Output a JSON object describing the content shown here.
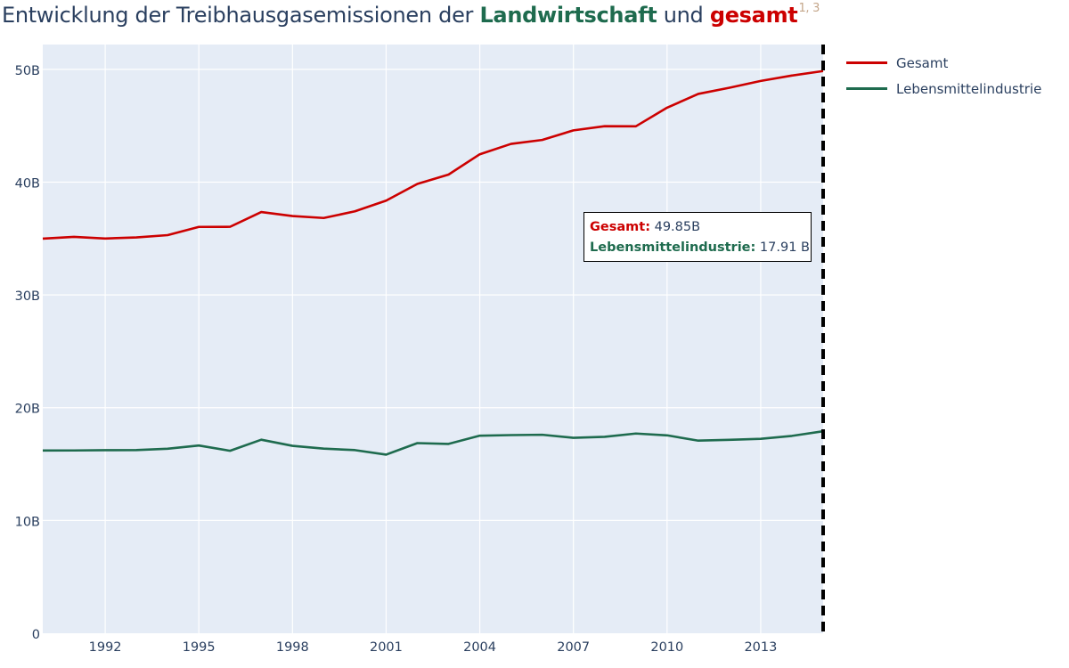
{
  "title": {
    "prefix": "Entwicklung der Treibhausgasemissionen der ",
    "highlight_green": "Landwirtschaft",
    "middle": " und ",
    "highlight_red": "gesamt",
    "footnote": "1, 3"
  },
  "legend": {
    "items": [
      {
        "label": "Gesamt",
        "color": "#cc0000"
      },
      {
        "label": "Lebensmittelindustrie",
        "color": "#1e6b4e"
      }
    ]
  },
  "tooltip": {
    "gesamt_label": "Gesamt:",
    "gesamt_value": "49.85B",
    "lebensmittel_label": "Lebensmittelindustrie:",
    "lebensmittel_value": "17.91 B"
  },
  "colors": {
    "plot_background": "#e5ecf6",
    "gridline": "#ffffff",
    "gesamt": "#cc0000",
    "lebensmittelindustrie": "#1e6b4e",
    "hover_line": "#000000"
  },
  "chart_data": {
    "type": "line",
    "x": [
      1990,
      1991,
      1992,
      1993,
      1994,
      1995,
      1996,
      1997,
      1998,
      1999,
      2000,
      2001,
      2002,
      2003,
      2004,
      2005,
      2006,
      2007,
      2008,
      2009,
      2010,
      2011,
      2012,
      2013,
      2014,
      2015
    ],
    "series": [
      {
        "name": "Gesamt",
        "color": "#cc0000",
        "values": [
          34.99,
          35.15,
          35.0,
          35.1,
          35.3,
          36.03,
          36.04,
          37.35,
          36.99,
          36.82,
          37.41,
          38.36,
          39.84,
          40.67,
          42.47,
          43.39,
          43.74,
          44.59,
          44.96,
          44.95,
          46.6,
          47.82,
          48.37,
          48.97,
          49.45,
          49.85
        ]
      },
      {
        "name": "Lebensmittelindustrie",
        "color": "#1e6b4e",
        "values": [
          16.2,
          16.21,
          16.23,
          16.24,
          16.36,
          16.65,
          16.18,
          17.16,
          16.62,
          16.37,
          16.24,
          15.84,
          16.86,
          16.79,
          17.52,
          17.57,
          17.6,
          17.33,
          17.42,
          17.71,
          17.55,
          17.08,
          17.15,
          17.24,
          17.5,
          17.91
        ]
      }
    ],
    "x_ticks": [
      1992,
      1995,
      1998,
      2001,
      2004,
      2007,
      2010,
      2013
    ],
    "x_tick_labels": [
      "1992",
      "1995",
      "1998",
      "2001",
      "2004",
      "2007",
      "2010",
      "2013"
    ],
    "y_ticks": [
      0,
      10,
      20,
      30,
      40,
      50
    ],
    "y_tick_labels": [
      "0",
      "10B",
      "20B",
      "30B",
      "40B",
      "50B"
    ],
    "xlim": [
      1990,
      2015
    ],
    "ylim": [
      0,
      52.2
    ],
    "hover_x": 2015,
    "grid": true,
    "legend_position": "top-right"
  }
}
